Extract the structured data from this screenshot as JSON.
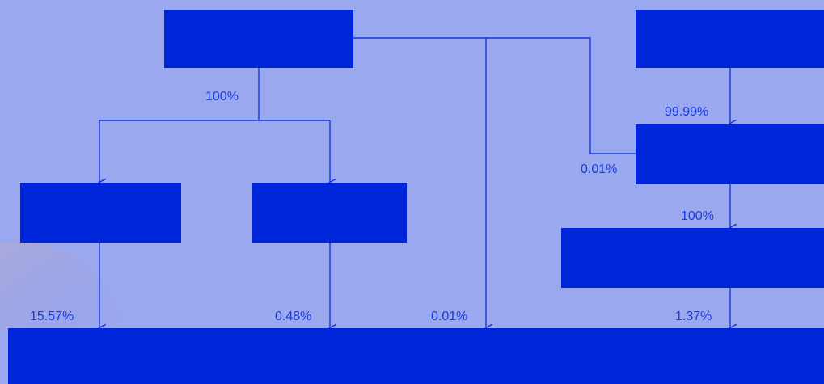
{
  "colors": {
    "background": "#9aa8ef",
    "box_fill": "#0026dc",
    "line": "#1536e0",
    "label_text": "#1a3be3"
  },
  "boxes": [
    {
      "id": "top-left-entity",
      "label": ""
    },
    {
      "id": "top-right-entity",
      "label": ""
    },
    {
      "id": "right-mid-entity",
      "label": ""
    },
    {
      "id": "left-sub-entity",
      "label": ""
    },
    {
      "id": "center-sub-entity",
      "label": ""
    },
    {
      "id": "right-lower-entity",
      "label": ""
    },
    {
      "id": "bottom-target-entity",
      "label": ""
    }
  ],
  "edges": [
    {
      "from": "top-left-entity",
      "to": "left-sub-entity",
      "percent": "100%"
    },
    {
      "from": "top-left-entity",
      "to": "center-sub-entity",
      "percent": "100%"
    },
    {
      "from": "top-left-entity",
      "to": "bottom-target-entity",
      "percent": "0.01%"
    },
    {
      "from": "top-left-entity",
      "to": "right-mid-entity",
      "percent": "0.01%"
    },
    {
      "from": "top-right-entity",
      "to": "right-mid-entity",
      "percent": "99.99%"
    },
    {
      "from": "right-mid-entity",
      "to": "right-lower-entity",
      "percent": "100%"
    },
    {
      "from": "left-sub-entity",
      "to": "bottom-target-entity",
      "percent": "15.57%"
    },
    {
      "from": "center-sub-entity",
      "to": "bottom-target-entity",
      "percent": "0.48%"
    },
    {
      "from": "right-lower-entity",
      "to": "bottom-target-entity",
      "percent": "1.37%"
    }
  ],
  "labels": {
    "top_left_split": "100%",
    "top_right_to_mid": "99.99%",
    "top_left_to_mid": "0.01%",
    "mid_to_lower": "100%",
    "left_to_bottom": "15.57%",
    "center_to_bottom": "0.48%",
    "top_left_to_bottom": "0.01%",
    "lower_to_bottom": "1.37%"
  }
}
